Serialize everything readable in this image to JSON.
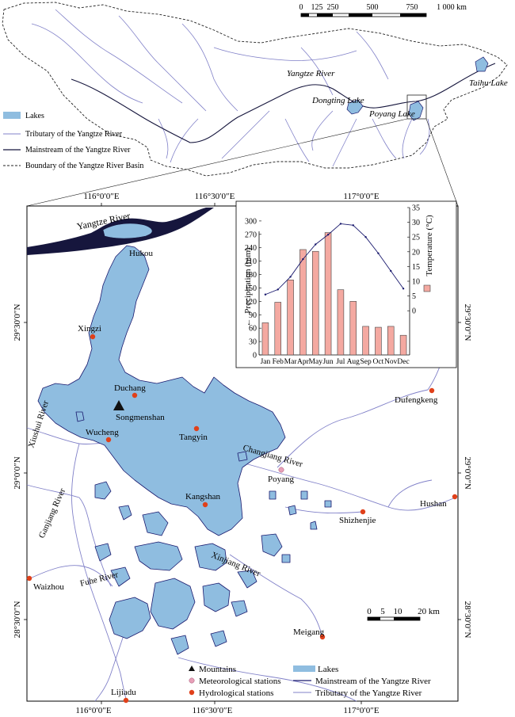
{
  "overview": {
    "scale_ticks": [
      "0",
      "125",
      "250",
      "500",
      "750",
      "1 000 km"
    ],
    "labels": {
      "yangtze": "Yangtze River",
      "dongting": "Dongting Lake",
      "poyang": "Poyang Lake",
      "taihu": "Taihu Lake"
    },
    "legend": [
      {
        "key": "lakes",
        "label": "Lakes"
      },
      {
        "key": "tributary",
        "label": "Tributary of the Yangtze River"
      },
      {
        "key": "mainstream",
        "label": "Mainstream of the Yangtze River"
      },
      {
        "key": "boundary",
        "label": "Boundary of the Yangtze River Basin"
      }
    ]
  },
  "detail": {
    "top_ticks": [
      "116°0′0″E",
      "116°30′0″E",
      "117°0′0″E"
    ],
    "bottom_ticks": [
      "116°0′0″E",
      "116°30′0″E",
      "117°0′0″E"
    ],
    "left_ticks": [
      "29°30′0″N",
      "29°0′0″N",
      "28°30′0″N"
    ],
    "right_ticks": [
      "29°30′0″N",
      "29°0′0″N",
      "28°30′0″N"
    ],
    "rivers": {
      "yangtze": "Yangtze River",
      "xiushui": "Xiushui River",
      "ganjiang": "Ganjiang River",
      "fuhe": "Fuhe River",
      "xinjiang": "Xinjiang River",
      "changjiang": "Changjiang River"
    },
    "mountain": "Songmenshan",
    "stations": [
      {
        "key": "hukou",
        "name": "Hukou",
        "type": "hydro"
      },
      {
        "key": "xingzi",
        "name": "Xingzi",
        "type": "hydro"
      },
      {
        "key": "duchang",
        "name": "Duchang",
        "type": "hydro"
      },
      {
        "key": "wucheng",
        "name": "Wucheng",
        "type": "hydro"
      },
      {
        "key": "tangyin",
        "name": "Tangyin",
        "type": "hydro"
      },
      {
        "key": "kangshan",
        "name": "Kangshan",
        "type": "hydro"
      },
      {
        "key": "poyang",
        "name": "Poyang",
        "type": "meteo"
      },
      {
        "key": "dufengkeng",
        "name": "Dufengkeng",
        "type": "hydro"
      },
      {
        "key": "shizhenjie",
        "name": "Shizhenjie",
        "type": "hydro"
      },
      {
        "key": "hushan",
        "name": "Hushan",
        "type": "hydro"
      },
      {
        "key": "waizhou",
        "name": "Waizhou",
        "type": "hydro"
      },
      {
        "key": "meigang",
        "name": "Meigang",
        "type": "hydro"
      },
      {
        "key": "lijiadu",
        "name": "Lijiadu",
        "type": "hydro"
      }
    ],
    "scale_ticks": [
      "0",
      "5",
      "10",
      "20 km"
    ],
    "legend": [
      {
        "key": "mountains",
        "label": "Mountains"
      },
      {
        "key": "meteo",
        "label": "Meteorological stations"
      },
      {
        "key": "hydro",
        "label": "Hydrological stations"
      },
      {
        "key": "lakes",
        "label": "Lakes"
      },
      {
        "key": "mainstream",
        "label": "Mainstream of the Yangtze River"
      },
      {
        "key": "tributary",
        "label": "Tributary of the Yangtze River"
      }
    ]
  },
  "chart_data": {
    "type": "bar",
    "categories": [
      "Jan",
      "Feb",
      "Mar",
      "Apr",
      "May",
      "Jun",
      "Jul",
      "Aug",
      "Sep",
      "Oct",
      "Nov",
      "Dec"
    ],
    "series": [
      {
        "kind": "bar",
        "axis": "left",
        "values": [
          72,
          118,
          168,
          236,
          232,
          274,
          146,
          120,
          64,
          62,
          64,
          44
        ]
      },
      {
        "kind": "line",
        "axis": "right",
        "values": [
          5.5,
          7.2,
          11.5,
          17.5,
          22.5,
          25.8,
          29.5,
          29.0,
          25.0,
          19.5,
          13.5,
          7.5
        ]
      }
    ],
    "ylabel_left": "Precipitation (mm)",
    "ylabel_right": "Temperature (°C)",
    "yticks_left": [
      0,
      30,
      60,
      90,
      120,
      150,
      180,
      210,
      240,
      270,
      300
    ],
    "yticks_right": [
      0,
      5,
      10,
      15,
      20,
      25,
      30,
      35
    ],
    "ylim_left": [
      0,
      330
    ],
    "ylim_right": [
      -15,
      35
    ],
    "colors": {
      "bar": "#f4a9a1",
      "bar_edge": "#444444",
      "line": "#1a1a6e"
    }
  },
  "colors": {
    "lake": "#8fbde0",
    "lake_edge": "#1a1a6e",
    "mainstream": "#16163d",
    "tributary": "#8080c8",
    "hydro": "#e0401a",
    "meteo": "#e8a0b8"
  }
}
